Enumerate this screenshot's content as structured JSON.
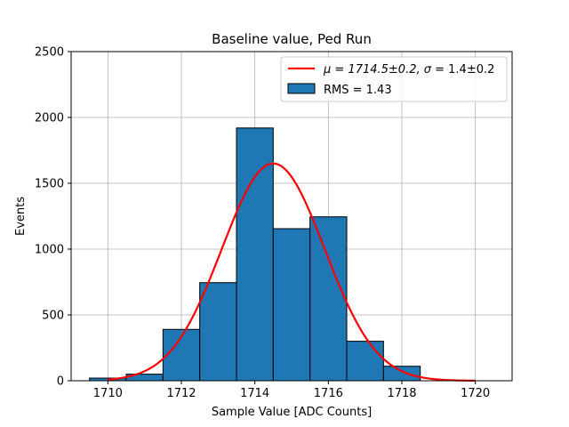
{
  "chart_data": {
    "type": "bar",
    "title": "Baseline value, Ped Run",
    "xlabel": "Sample Value [ADC Counts]",
    "ylabel": "Events",
    "xlim": [
      1709,
      1721
    ],
    "ylim": [
      0,
      2500
    ],
    "xticks": [
      1710,
      1712,
      1714,
      1716,
      1718,
      1720
    ],
    "yticks": [
      0,
      500,
      1000,
      1500,
      2000,
      2500
    ],
    "grid": true,
    "legend_position": "top-right",
    "bar_color": "#1f77b4",
    "fit_color": "#ff0000",
    "histogram": {
      "name": "RMS = 1.43",
      "bin_edges": [
        1709.5,
        1710.5,
        1711.5,
        1712.5,
        1713.5,
        1714.5,
        1715.5,
        1716.5,
        1717.5,
        1718.5
      ],
      "values": [
        20,
        50,
        390,
        745,
        1920,
        1155,
        1245,
        300,
        110
      ]
    },
    "fit": {
      "name_prefix": "μ = 1714.5±0.2, ",
      "name_sigma": "σ",
      "name_suffix": " = 1.4±0.2",
      "mu": 1714.5,
      "sigma": 1.4,
      "amplitude": 1650,
      "x_range": [
        1710,
        1720
      ]
    }
  }
}
